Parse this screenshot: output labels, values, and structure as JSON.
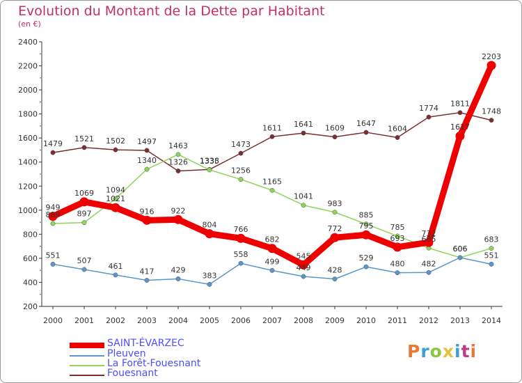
{
  "title": "Evolution du Montant de la Dette par Habitant",
  "subtitle": "(en €)",
  "logo": {
    "text": "Proxiti",
    "colors": [
      "#e8783a",
      "#3aa0d8",
      "#8cc63f",
      "#e8c03a",
      "#3aa0d8",
      "#c03a8c",
      "#e8783a"
    ]
  },
  "chart_data": {
    "type": "line",
    "title": "Evolution du Montant de la Dette par Habitant",
    "ylabel": "(en €)",
    "xlabel": "",
    "ylim": [
      200,
      2400
    ],
    "yticks": [
      200,
      400,
      600,
      800,
      1000,
      1200,
      1400,
      1600,
      1800,
      2000,
      2200,
      2400
    ],
    "grid": false,
    "legend_position": "bottom-left",
    "x": [
      "2000",
      "2001",
      "2002",
      "2003",
      "2004",
      "2005",
      "2006",
      "2007",
      "2008",
      "2009",
      "2010",
      "2011",
      "2012",
      "2013",
      "2014"
    ],
    "series": [
      {
        "name": "Fouesnant",
        "color": "#7a2e2e",
        "values": [
          1479,
          1521,
          1502,
          1497,
          1326,
          1338,
          1473,
          1611,
          1641,
          1609,
          1647,
          1604,
          1774,
          1811,
          1748
        ]
      },
      {
        "name": "La Forêt-Fouesnant",
        "color": "#8fd45a",
        "values": [
          889,
          897,
          1094,
          1340,
          1463,
          1335,
          1256,
          1165,
          1041,
          983,
          885,
          785,
          685,
          606,
          683
        ]
      },
      {
        "name": "Pleuven",
        "color": "#5a96c8",
        "values": [
          551,
          507,
          461,
          417,
          429,
          383,
          558,
          499,
          449,
          428,
          529,
          480,
          482,
          606,
          551
        ]
      },
      {
        "name": "SAINT-ÉVARZEC",
        "color": "#ee0000",
        "values": [
          949,
          1069,
          1021,
          916,
          922,
          804,
          766,
          682,
          545,
          772,
          795,
          693,
          732,
          1617,
          2203
        ]
      }
    ]
  },
  "legend": [
    {
      "label": "SAINT-ÉVARZEC",
      "color": "#ee0000"
    },
    {
      "label": "Pleuven",
      "color": "#5a96c8"
    },
    {
      "label": "La Forêt-Fouesnant",
      "color": "#8fd45a"
    },
    {
      "label": "Fouesnant",
      "color": "#7a2e2e"
    }
  ]
}
